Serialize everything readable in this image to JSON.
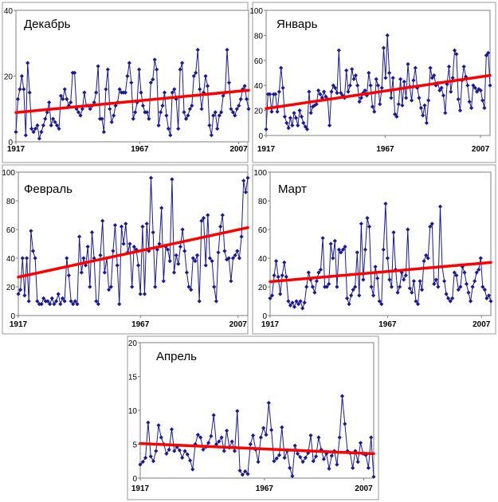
{
  "colors": {
    "series": "#1a1a8c",
    "trend": "#ff0000",
    "frame": "#9a9a9a"
  },
  "chart_data": [
    {
      "type": "line",
      "title": "Декабрь",
      "grid": false,
      "legend": "none",
      "xlim": [
        1917,
        2011
      ],
      "ylim": [
        0,
        40
      ],
      "yticks": [
        "0",
        "20",
        "40"
      ],
      "xticks": [
        "1917",
        "1967",
        "2007"
      ],
      "series": [
        {
          "x_start": 1917,
          "values": [
            3,
            13,
            16,
            20,
            16,
            2,
            24,
            15,
            4,
            3,
            4,
            5,
            1,
            3,
            5,
            7,
            9,
            12,
            5,
            7,
            6,
            5,
            4,
            14,
            13,
            16,
            13,
            11,
            12,
            21,
            21,
            10,
            9,
            8,
            10,
            15,
            11,
            11,
            10,
            11,
            12,
            15,
            23,
            7,
            7,
            3,
            16,
            22,
            10,
            6,
            8,
            11,
            12,
            16,
            15,
            15,
            15,
            20,
            24,
            18,
            7,
            9,
            12,
            22,
            15,
            11,
            9,
            9,
            7,
            18,
            19,
            25,
            22,
            5,
            9,
            11,
            15,
            8,
            4,
            2,
            15,
            16,
            13,
            4,
            22,
            24,
            9,
            7,
            8,
            10,
            11,
            20,
            21,
            28,
            16,
            10,
            15,
            20,
            17,
            5,
            2,
            8,
            9,
            4,
            8,
            9,
            14,
            15,
            28,
            18,
            10,
            9,
            8,
            10,
            11,
            13,
            16,
            17,
            13,
            10
          ]
        }
      ],
      "trend": {
        "x": [
          1917,
          2011
        ],
        "y": [
          8.9,
          15.7
        ]
      }
    },
    {
      "type": "line",
      "title": "Январь",
      "grid": false,
      "legend": "none",
      "xlim": [
        1917,
        2011
      ],
      "ylim": [
        0,
        100
      ],
      "yticks": [
        "0",
        "20",
        "40",
        "60",
        "80",
        "100"
      ],
      "xticks": [
        "1917",
        "1967",
        "2007"
      ],
      "series": [
        {
          "x_start": 1917,
          "values": [
            5,
            33,
            33,
            19,
            33,
            33,
            19,
            35,
            54,
            38,
            15,
            10,
            6,
            14,
            8,
            18,
            14,
            8,
            20,
            15,
            10,
            7,
            5,
            35,
            18,
            23,
            24,
            25,
            36,
            33,
            30,
            35,
            31,
            29,
            8,
            35,
            40,
            38,
            34,
            68,
            34,
            32,
            30,
            52,
            35,
            40,
            53,
            45,
            48,
            40,
            27,
            30,
            34,
            36,
            32,
            50,
            40,
            23,
            19,
            45,
            40,
            25,
            38,
            70,
            46,
            80,
            50,
            30,
            46,
            17,
            15,
            25,
            45,
            24,
            43,
            30,
            57,
            39,
            28,
            44,
            54,
            38,
            30,
            22,
            16,
            24,
            10,
            28,
            54,
            46,
            48,
            40,
            42,
            36,
            38,
            32,
            18,
            41,
            55,
            35,
            46,
            68,
            65,
            29,
            20,
            44,
            55,
            47,
            40,
            27,
            22,
            40,
            38,
            35,
            37,
            36,
            28,
            22,
            64,
            66,
            40
          ]
        }
      ],
      "trend": {
        "x": [
          1917,
          2011
        ],
        "y": [
          21.5,
          48.0
        ]
      }
    },
    {
      "type": "line",
      "title": "Февраль",
      "grid": false,
      "legend": "none",
      "xlim": [
        1917,
        2011
      ],
      "ylim": [
        0,
        100
      ],
      "yticks": [
        "0",
        "20",
        "40",
        "60",
        "80",
        "100"
      ],
      "xticks": [
        "1917",
        "1967",
        "2007"
      ],
      "series": [
        {
          "x_start": 1917,
          "values": [
            15,
            18,
            40,
            14,
            40,
            10,
            59,
            45,
            40,
            10,
            8,
            8,
            12,
            10,
            10,
            8,
            12,
            8,
            10,
            15,
            8,
            12,
            10,
            40,
            28,
            10,
            8,
            10,
            8,
            55,
            30,
            40,
            35,
            48,
            20,
            58,
            40,
            10,
            8,
            42,
            66,
            30,
            40,
            18,
            20,
            45,
            63,
            35,
            8,
            62,
            50,
            64,
            44,
            50,
            20,
            48,
            46,
            35,
            15,
            62,
            15,
            64,
            45,
            96,
            58,
            20,
            46,
            50,
            75,
            24,
            48,
            46,
            38,
            95,
            30,
            42,
            36,
            48,
            60,
            45,
            30,
            20,
            18,
            40,
            38,
            42,
            10,
            66,
            68,
            35,
            70,
            40,
            38,
            20,
            10,
            44,
            62,
            70,
            45,
            39,
            40,
            24,
            40,
            42,
            45,
            40,
            55,
            94,
            86,
            96
          ]
        }
      ],
      "trend": {
        "x": [
          1917,
          2011
        ],
        "y": [
          26.8,
          61.3
        ]
      }
    },
    {
      "type": "line",
      "title": "Март",
      "grid": false,
      "legend": "none",
      "xlim": [
        1917,
        2011
      ],
      "ylim": [
        0,
        100
      ],
      "yticks": [
        "0",
        "20",
        "40",
        "60",
        "80",
        "100"
      ],
      "xticks": [
        "1917",
        "1967",
        "2007"
      ],
      "series": [
        {
          "x_start": 1917,
          "values": [
            12,
            14,
            28,
            38,
            27,
            15,
            28,
            37,
            27,
            10,
            7,
            9,
            6,
            10,
            8,
            10,
            5,
            9,
            20,
            30,
            25,
            20,
            16,
            24,
            30,
            32,
            54,
            20,
            20,
            22,
            50,
            40,
            52,
            20,
            46,
            44,
            46,
            48,
            12,
            8,
            14,
            18,
            20,
            44,
            14,
            64,
            25,
            46,
            68,
            62,
            20,
            14,
            34,
            26,
            10,
            8,
            46,
            78,
            40,
            25,
            20,
            58,
            32,
            16,
            20,
            30,
            25,
            28,
            60,
            19,
            16,
            24,
            10,
            8,
            24,
            18,
            38,
            42,
            40,
            62,
            64,
            22,
            25,
            20,
            76,
            34,
            24,
            15,
            12,
            10,
            12,
            30,
            28,
            18,
            20,
            34,
            30,
            22,
            16,
            10,
            20,
            24,
            30,
            32,
            40,
            20,
            18,
            12,
            14,
            10
          ]
        }
      ],
      "trend": {
        "x": [
          1917,
          2011
        ],
        "y": [
          23.6,
          37.0
        ]
      }
    },
    {
      "type": "line",
      "title": "Апрель",
      "grid": false,
      "legend": "none",
      "xlim": [
        1917,
        2011
      ],
      "ylim": [
        0,
        20
      ],
      "yticks": [
        "0",
        "5",
        "10",
        "15",
        "20"
      ],
      "xticks": [
        "1917",
        "1967",
        "2007"
      ],
      "series": [
        {
          "x_start": 1917,
          "values": [
            2,
            2.4,
            3,
            8.2,
            3.2,
            2.5,
            4,
            7.8,
            6,
            5,
            3.6,
            4.2,
            7.2,
            4,
            4.6,
            4.1,
            3,
            4,
            3.5,
            2.6,
            1.3,
            5,
            6.4,
            6,
            4.2,
            4.6,
            5.2,
            6.2,
            9.3,
            5,
            5.4,
            6,
            4,
            7,
            4.5,
            5.4,
            4,
            9.9,
            1.1,
            0.5,
            1,
            0.6,
            5,
            6.3,
            4.2,
            2.4,
            6,
            7.4,
            6.4,
            11.1,
            7.1,
            2.5,
            2.9,
            3.4,
            7.5,
            3,
            4,
            1.5,
            0.3,
            4.8,
            3.6,
            3.1,
            2.4,
            3,
            3.7,
            6.3,
            2.5,
            3.2,
            6,
            4.2,
            2.8,
            3.6,
            1.4,
            3.3,
            4,
            2,
            6,
            12.1,
            8,
            4,
            3.7,
            1.5,
            4,
            2.4,
            5.2,
            3.6,
            3.4,
            1.5,
            6,
            0.2
          ]
        }
      ],
      "trend": {
        "x": [
          1917,
          2011
        ],
        "y": [
          5.1,
          3.6
        ]
      }
    }
  ]
}
